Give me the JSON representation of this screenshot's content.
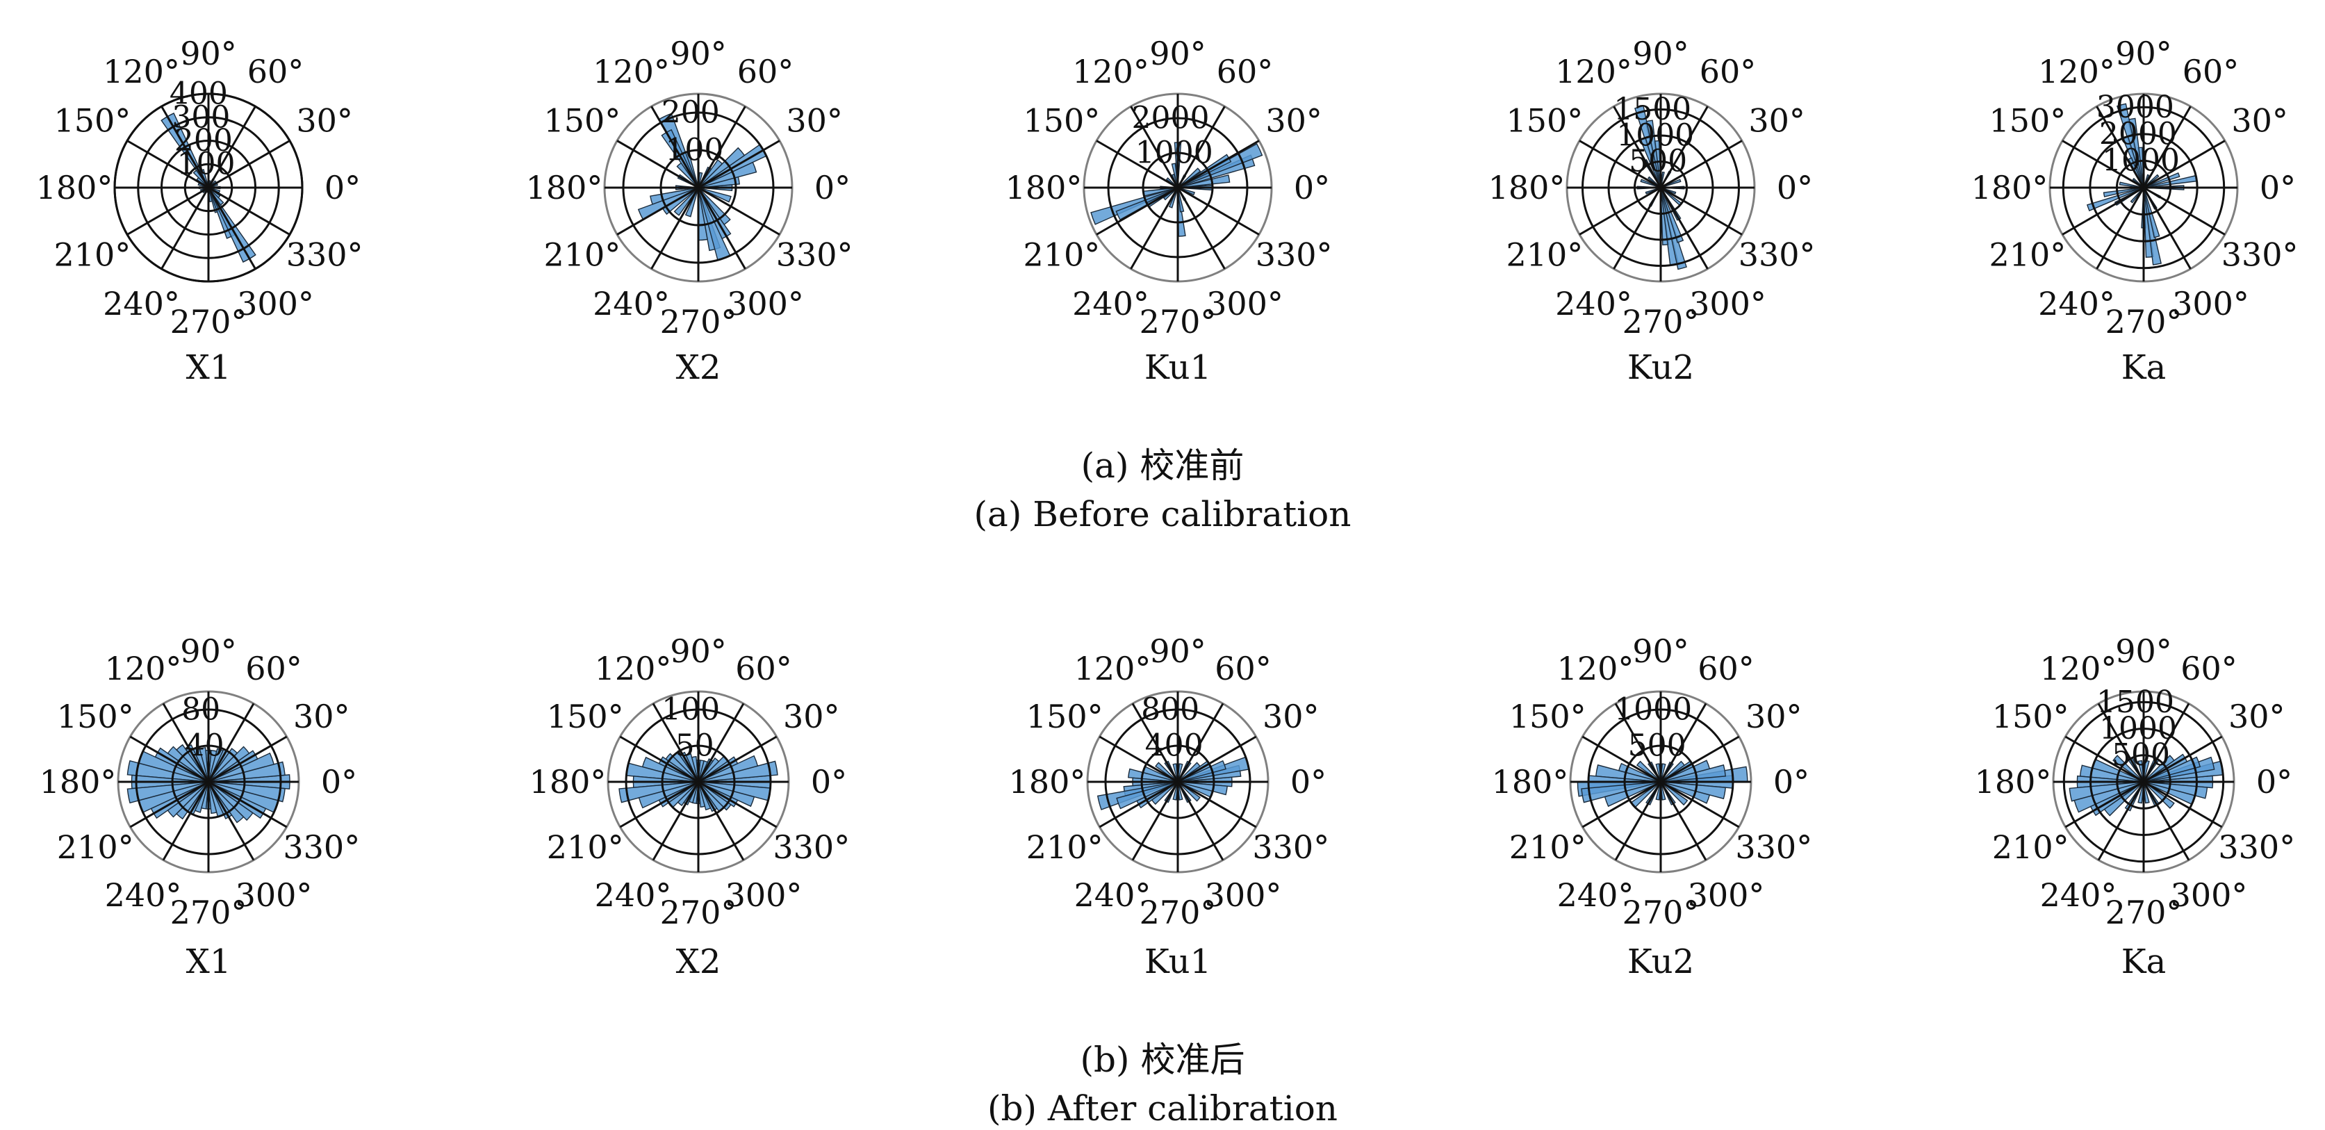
{
  "chart_data": [
    {
      "type": "polar-histogram",
      "group": "a",
      "subplot": "X1",
      "angle_ticks": [
        "90°",
        "120°",
        "150°",
        "180°",
        "210°",
        "240°",
        "270°",
        "300°",
        "330°",
        "0°",
        "30°",
        "60°"
      ],
      "rmax": 400,
      "radial_ticks": [
        "100",
        "200",
        "300",
        "400"
      ],
      "bars": [
        [
          100,
          25
        ],
        [
          110,
          80
        ],
        [
          120,
          350
        ],
        [
          130,
          90
        ],
        [
          140,
          60
        ],
        [
          150,
          30
        ],
        [
          160,
          45
        ],
        [
          180,
          40
        ],
        [
          200,
          35
        ],
        [
          220,
          30
        ],
        [
          250,
          20
        ],
        [
          280,
          60
        ],
        [
          290,
          110
        ],
        [
          295,
          230
        ],
        [
          300,
          350
        ],
        [
          310,
          90
        ],
        [
          320,
          60
        ],
        [
          340,
          50
        ],
        [
          0,
          50
        ],
        [
          20,
          40
        ],
        [
          40,
          40
        ],
        [
          60,
          40
        ],
        [
          80,
          30
        ]
      ],
      "bar_width_deg": 10,
      "bar_color": "#5b9bd5"
    },
    {
      "type": "polar-histogram",
      "group": "a",
      "subplot": "X2",
      "angle_ticks": [
        "90°",
        "120°",
        "150°",
        "180°",
        "210°",
        "240°",
        "270°",
        "300°",
        "330°",
        "0°",
        "30°",
        "60°"
      ],
      "rmax": 250,
      "radial_ticks": [
        "100",
        "200"
      ],
      "bars": [
        [
          110,
          100
        ],
        [
          115,
          210
        ],
        [
          120,
          170
        ],
        [
          130,
          80
        ],
        [
          150,
          60
        ],
        [
          180,
          60
        ],
        [
          195,
          130
        ],
        [
          205,
          170
        ],
        [
          215,
          110
        ],
        [
          230,
          90
        ],
        [
          250,
          80
        ],
        [
          275,
          140
        ],
        [
          285,
          170
        ],
        [
          290,
          200
        ],
        [
          300,
          150
        ],
        [
          310,
          120
        ],
        [
          340,
          90
        ],
        [
          0,
          90
        ],
        [
          10,
          110
        ],
        [
          20,
          160
        ],
        [
          30,
          200
        ],
        [
          40,
          150
        ],
        [
          50,
          90
        ],
        [
          60,
          60
        ],
        [
          80,
          40
        ]
      ],
      "bar_width_deg": 10,
      "bar_color": "#5b9bd5"
    },
    {
      "type": "polar-histogram",
      "group": "a",
      "subplot": "Ku1",
      "angle_ticks": [
        "90°",
        "120°",
        "150°",
        "180°",
        "210°",
        "240°",
        "270°",
        "300°",
        "330°",
        "0°",
        "30°",
        "60°"
      ],
      "rmax": 2700,
      "radial_ticks": [
        "1000",
        "2000"
      ],
      "bars": [
        [
          90,
          1300
        ],
        [
          100,
          700
        ],
        [
          110,
          400
        ],
        [
          140,
          400
        ],
        [
          180,
          500
        ],
        [
          190,
          1000
        ],
        [
          200,
          2600
        ],
        [
          205,
          1900
        ],
        [
          210,
          1000
        ],
        [
          220,
          500
        ],
        [
          250,
          600
        ],
        [
          275,
          1400
        ],
        [
          280,
          700
        ],
        [
          300,
          400
        ],
        [
          340,
          500
        ],
        [
          0,
          1000
        ],
        [
          10,
          1500
        ],
        [
          20,
          2300
        ],
        [
          25,
          2600
        ],
        [
          30,
          1700
        ],
        [
          40,
          800
        ],
        [
          60,
          400
        ]
      ],
      "bar_width_deg": 8,
      "bar_color": "#5b9bd5"
    },
    {
      "type": "polar-histogram",
      "group": "a",
      "subplot": "Ku2",
      "angle_ticks": [
        "90°",
        "120°",
        "150°",
        "180°",
        "210°",
        "240°",
        "270°",
        "300°",
        "330°",
        "0°",
        "30°",
        "60°"
      ],
      "rmax": 1800,
      "radial_ticks": [
        "500",
        "1000",
        "1500"
      ],
      "bars": [
        [
          95,
          900
        ],
        [
          100,
          1300
        ],
        [
          105,
          1600
        ],
        [
          110,
          1000
        ],
        [
          120,
          600
        ],
        [
          140,
          300
        ],
        [
          160,
          400
        ],
        [
          180,
          450
        ],
        [
          200,
          300
        ],
        [
          240,
          400
        ],
        [
          275,
          1100
        ],
        [
          280,
          1500
        ],
        [
          285,
          1600
        ],
        [
          290,
          1100
        ],
        [
          300,
          700
        ],
        [
          320,
          500
        ],
        [
          340,
          300
        ],
        [
          0,
          450
        ],
        [
          20,
          400
        ],
        [
          60,
          350
        ],
        [
          80,
          300
        ]
      ],
      "bar_width_deg": 6,
      "bar_color": "#5b9bd5"
    },
    {
      "type": "polar-histogram",
      "group": "a",
      "subplot": "Ka",
      "angle_ticks": [
        "90°",
        "120°",
        "150°",
        "180°",
        "210°",
        "240°",
        "270°",
        "300°",
        "330°",
        "0°",
        "30°",
        "60°"
      ],
      "rmax": 3500,
      "radial_ticks": [
        "1000",
        "2000",
        "3000"
      ],
      "bars": [
        [
          95,
          1500
        ],
        [
          100,
          2600
        ],
        [
          105,
          3200
        ],
        [
          110,
          2000
        ],
        [
          115,
          1200
        ],
        [
          140,
          500
        ],
        [
          170,
          900
        ],
        [
          190,
          1500
        ],
        [
          200,
          2200
        ],
        [
          210,
          1200
        ],
        [
          230,
          700
        ],
        [
          270,
          1500
        ],
        [
          275,
          2600
        ],
        [
          280,
          2900
        ],
        [
          285,
          1900
        ],
        [
          300,
          900
        ],
        [
          330,
          700
        ],
        [
          0,
          1500
        ],
        [
          10,
          2000
        ],
        [
          20,
          1400
        ],
        [
          40,
          700
        ],
        [
          70,
          500
        ]
      ],
      "bar_width_deg": 6,
      "bar_color": "#5b9bd5"
    },
    {
      "type": "polar-histogram",
      "group": "b",
      "subplot": "X1",
      "angle_ticks": [
        "90°",
        "120°",
        "150°",
        "180°",
        "210°",
        "240°",
        "270°",
        "300°",
        "330°",
        "0°",
        "30°",
        "60°"
      ],
      "rmax": 100,
      "radial_ticks": [
        "40",
        "80"
      ],
      "bars": [
        [
          0,
          90
        ],
        [
          10,
          85
        ],
        [
          20,
          75
        ],
        [
          30,
          60
        ],
        [
          40,
          55
        ],
        [
          50,
          45
        ],
        [
          60,
          40
        ],
        [
          70,
          38
        ],
        [
          80,
          35
        ],
        [
          90,
          35
        ],
        [
          100,
          38
        ],
        [
          110,
          40
        ],
        [
          120,
          45
        ],
        [
          130,
          50
        ],
        [
          140,
          55
        ],
        [
          150,
          65
        ],
        [
          160,
          80
        ],
        [
          170,
          90
        ],
        [
          180,
          85
        ],
        [
          190,
          90
        ],
        [
          200,
          80
        ],
        [
          210,
          70
        ],
        [
          220,
          55
        ],
        [
          230,
          50
        ],
        [
          240,
          40
        ],
        [
          250,
          35
        ],
        [
          260,
          30
        ],
        [
          270,
          30
        ],
        [
          280,
          35
        ],
        [
          290,
          40
        ],
        [
          300,
          45
        ],
        [
          310,
          55
        ],
        [
          320,
          60
        ],
        [
          330,
          70
        ],
        [
          340,
          80
        ],
        [
          350,
          85
        ]
      ],
      "bar_width_deg": 10,
      "bar_color": "#5b9bd5"
    },
    {
      "type": "polar-histogram",
      "group": "b",
      "subplot": "X2",
      "angle_ticks": [
        "90°",
        "120°",
        "150°",
        "180°",
        "210°",
        "240°",
        "270°",
        "300°",
        "330°",
        "0°",
        "30°",
        "60°"
      ],
      "rmax": 125,
      "radial_ticks": [
        "50",
        "100"
      ],
      "bars": [
        [
          0,
          100
        ],
        [
          10,
          110
        ],
        [
          20,
          85
        ],
        [
          30,
          60
        ],
        [
          40,
          50
        ],
        [
          50,
          40
        ],
        [
          60,
          35
        ],
        [
          70,
          30
        ],
        [
          80,
          30
        ],
        [
          90,
          30
        ],
        [
          100,
          35
        ],
        [
          110,
          40
        ],
        [
          120,
          45
        ],
        [
          130,
          50
        ],
        [
          140,
          55
        ],
        [
          150,
          60
        ],
        [
          160,
          80
        ],
        [
          170,
          100
        ],
        [
          180,
          90
        ],
        [
          190,
          110
        ],
        [
          200,
          85
        ],
        [
          210,
          60
        ],
        [
          220,
          50
        ],
        [
          230,
          40
        ],
        [
          240,
          35
        ],
        [
          250,
          30
        ],
        [
          260,
          30
        ],
        [
          270,
          30
        ],
        [
          280,
          35
        ],
        [
          290,
          40
        ],
        [
          300,
          45
        ],
        [
          310,
          50
        ],
        [
          320,
          55
        ],
        [
          330,
          60
        ],
        [
          340,
          80
        ],
        [
          350,
          100
        ]
      ],
      "bar_width_deg": 10,
      "bar_color": "#5b9bd5"
    },
    {
      "type": "polar-histogram",
      "group": "b",
      "subplot": "Ku1",
      "angle_ticks": [
        "90°",
        "120°",
        "150°",
        "180°",
        "210°",
        "240°",
        "270°",
        "300°",
        "330°",
        "0°",
        "30°",
        "60°"
      ],
      "rmax": 1000,
      "radial_ticks": [
        "400",
        "800"
      ],
      "bars": [
        [
          0,
          600
        ],
        [
          10,
          700
        ],
        [
          15,
          800
        ],
        [
          20,
          550
        ],
        [
          30,
          400
        ],
        [
          40,
          300
        ],
        [
          60,
          250
        ],
        [
          80,
          200
        ],
        [
          100,
          200
        ],
        [
          120,
          250
        ],
        [
          140,
          300
        ],
        [
          160,
          400
        ],
        [
          170,
          550
        ],
        [
          180,
          500
        ],
        [
          190,
          600
        ],
        [
          195,
          900
        ],
        [
          200,
          700
        ],
        [
          210,
          500
        ],
        [
          220,
          350
        ],
        [
          240,
          250
        ],
        [
          260,
          200
        ],
        [
          280,
          200
        ],
        [
          300,
          250
        ],
        [
          320,
          300
        ],
        [
          340,
          400
        ],
        [
          350,
          550
        ]
      ],
      "bar_width_deg": 10,
      "bar_color": "#5b9bd5"
    },
    {
      "type": "polar-histogram",
      "group": "b",
      "subplot": "Ku2",
      "angle_ticks": [
        "90°",
        "120°",
        "150°",
        "180°",
        "210°",
        "240°",
        "270°",
        "300°",
        "330°",
        "0°",
        "30°",
        "60°"
      ],
      "rmax": 1250,
      "radial_ticks": [
        "500",
        "1000"
      ],
      "bars": [
        [
          0,
          1000
        ],
        [
          5,
          1200
        ],
        [
          10,
          900
        ],
        [
          20,
          700
        ],
        [
          30,
          500
        ],
        [
          40,
          400
        ],
        [
          60,
          300
        ],
        [
          80,
          250
        ],
        [
          100,
          250
        ],
        [
          120,
          300
        ],
        [
          140,
          400
        ],
        [
          160,
          600
        ],
        [
          170,
          900
        ],
        [
          180,
          1000
        ],
        [
          185,
          1150
        ],
        [
          190,
          1100
        ],
        [
          200,
          800
        ],
        [
          220,
          500
        ],
        [
          240,
          350
        ],
        [
          260,
          250
        ],
        [
          280,
          250
        ],
        [
          300,
          350
        ],
        [
          320,
          450
        ],
        [
          340,
          700
        ],
        [
          350,
          900
        ]
      ],
      "bar_width_deg": 10,
      "bar_color": "#5b9bd5"
    },
    {
      "type": "polar-histogram",
      "group": "b",
      "subplot": "Ka",
      "angle_ticks": [
        "90°",
        "120°",
        "150°",
        "180°",
        "210°",
        "240°",
        "270°",
        "300°",
        "330°",
        "0°",
        "30°",
        "60°"
      ],
      "rmax": 1700,
      "radial_ticks": [
        "500",
        "1000",
        "1500"
      ],
      "bars": [
        [
          0,
          1300
        ],
        [
          10,
          1500
        ],
        [
          15,
          1350
        ],
        [
          20,
          1100
        ],
        [
          30,
          900
        ],
        [
          40,
          700
        ],
        [
          60,
          500
        ],
        [
          80,
          400
        ],
        [
          100,
          400
        ],
        [
          120,
          500
        ],
        [
          140,
          700
        ],
        [
          160,
          1000
        ],
        [
          170,
          1200
        ],
        [
          180,
          1250
        ],
        [
          190,
          1400
        ],
        [
          200,
          1350
        ],
        [
          210,
          1100
        ],
        [
          220,
          900
        ],
        [
          240,
          600
        ],
        [
          260,
          400
        ],
        [
          280,
          400
        ],
        [
          300,
          500
        ],
        [
          320,
          700
        ],
        [
          340,
          1000
        ],
        [
          350,
          1200
        ]
      ],
      "bar_width_deg": 10,
      "bar_color": "#5b9bd5"
    }
  ],
  "captions": {
    "a_cn": "(a) 校准前",
    "a_en": "(a) Before calibration",
    "b_cn": "(b) 校准后",
    "b_en": "(b) After calibration"
  }
}
